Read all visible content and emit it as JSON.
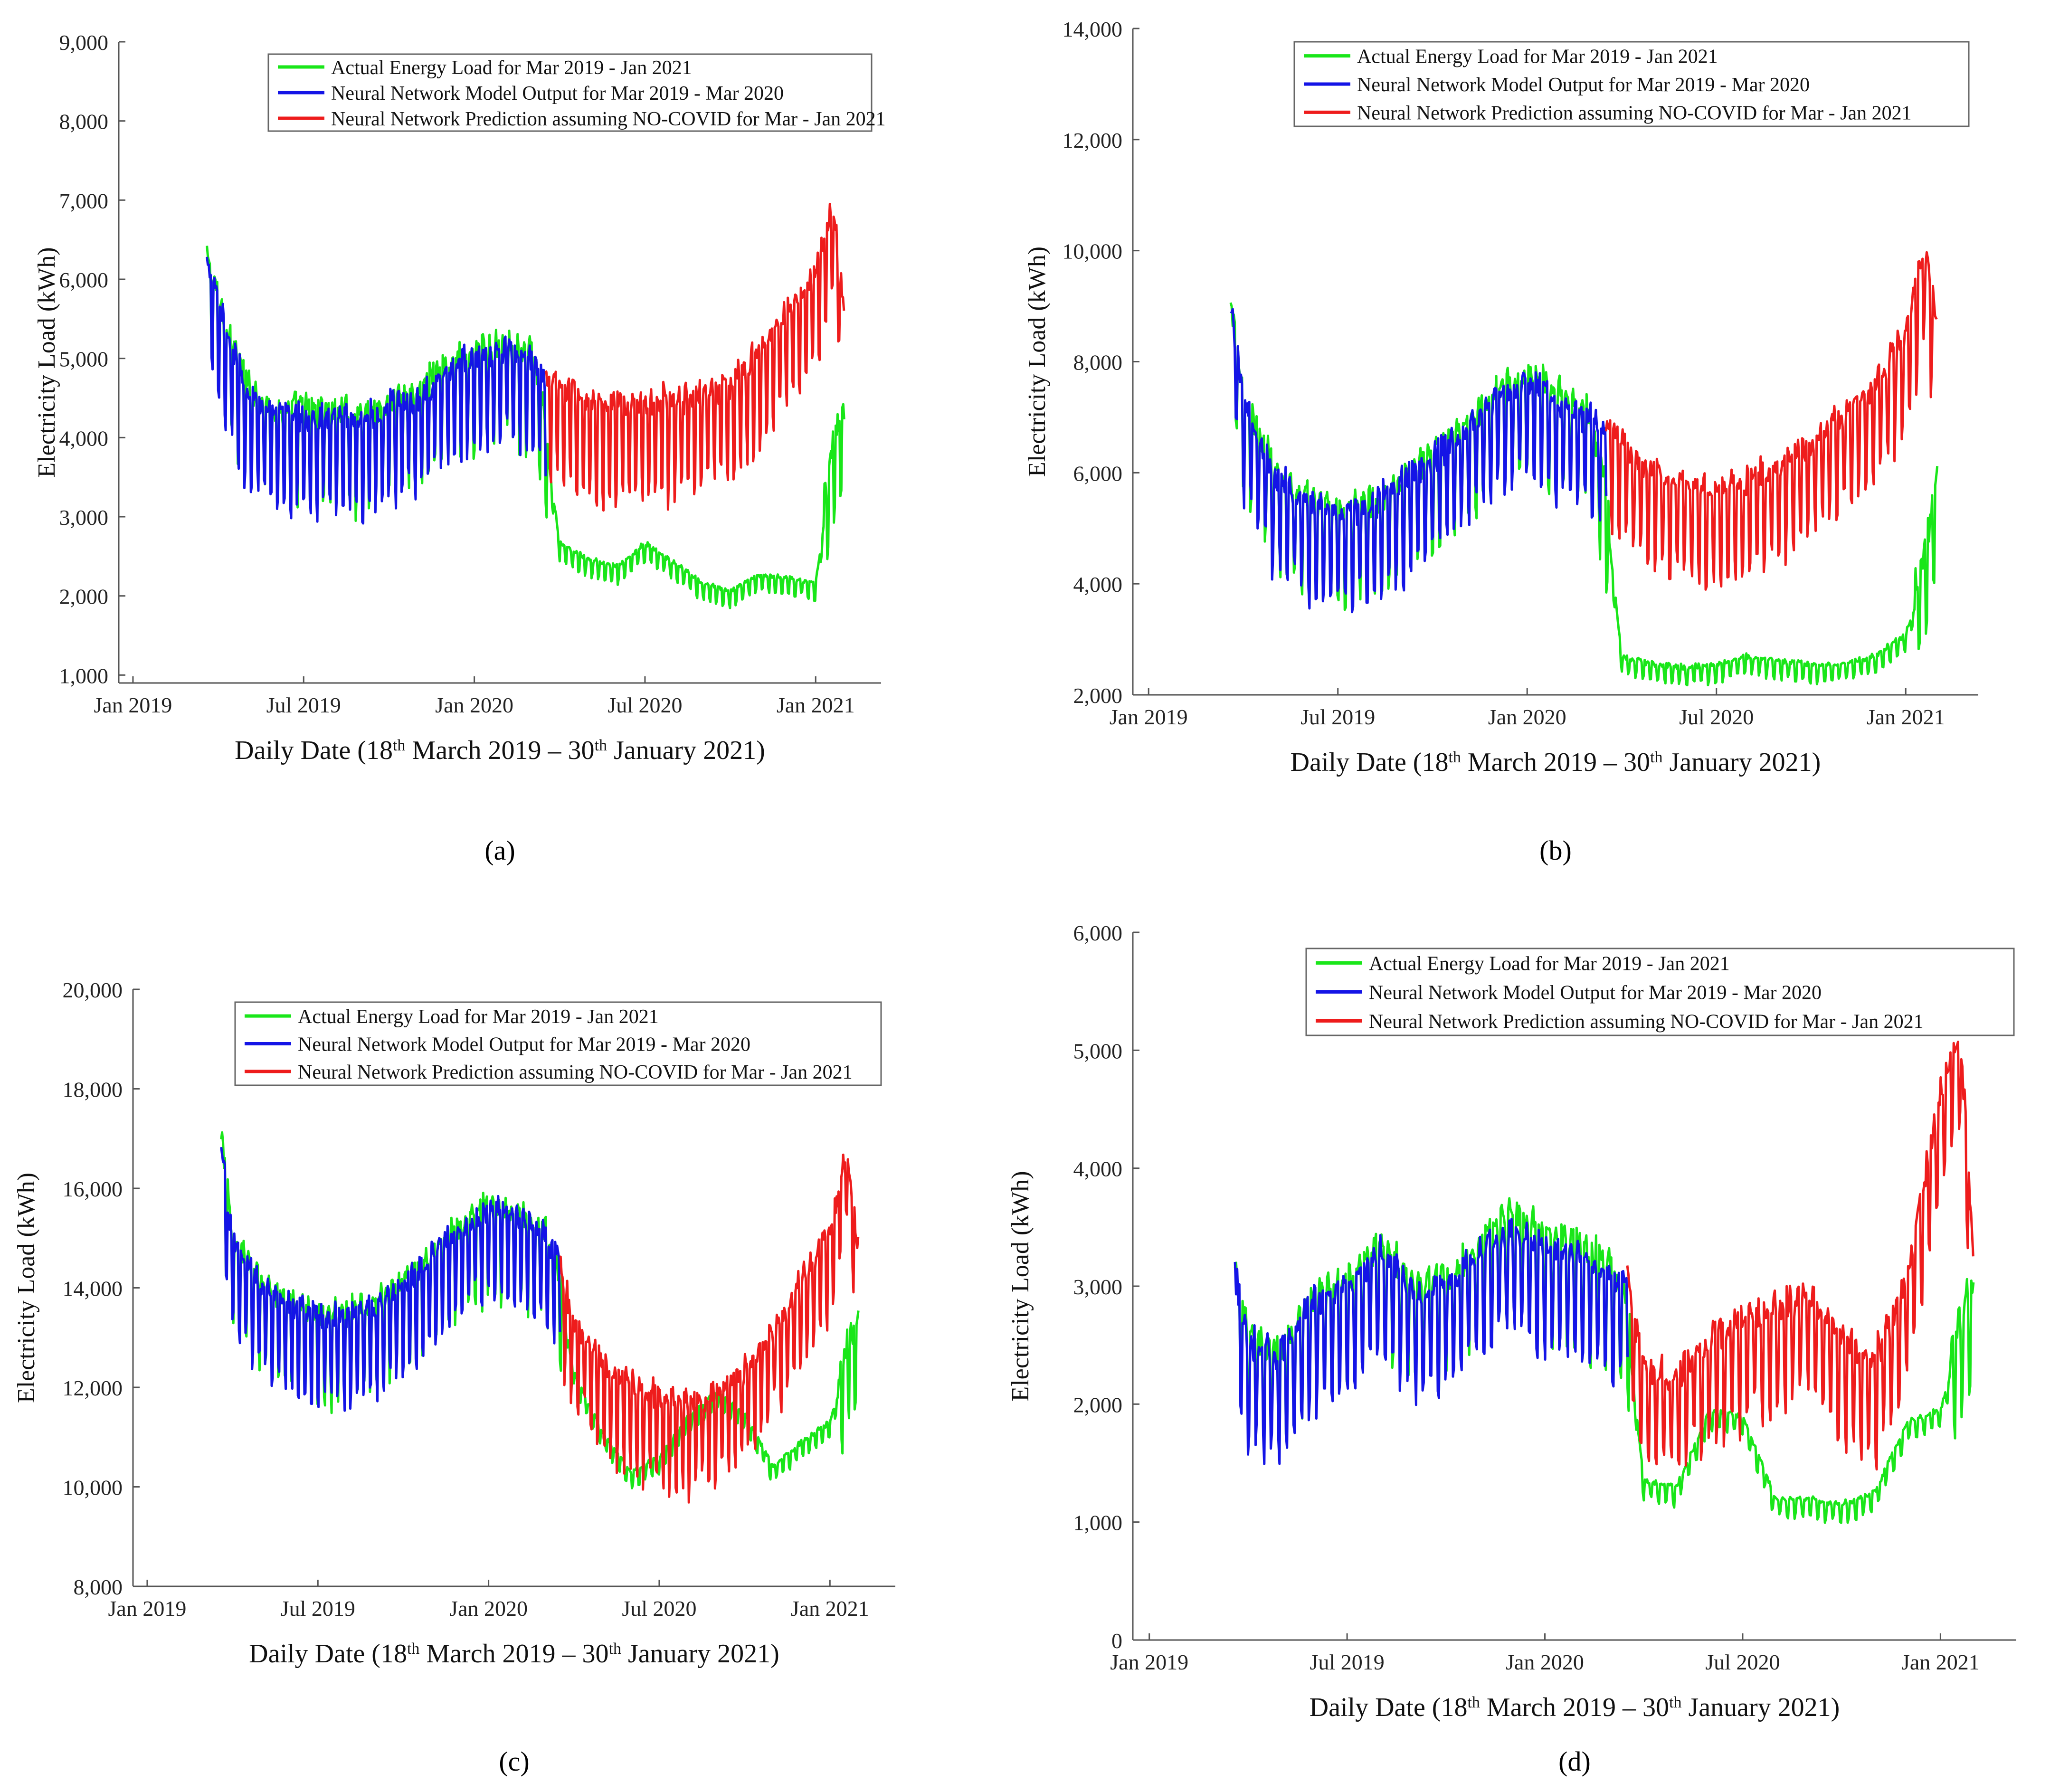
{
  "colors": {
    "actual": "#19e619",
    "model": "#1414e6",
    "prediction": "#ee1c1c",
    "axis": "#555555"
  },
  "chart_data": [
    {
      "panel": "a",
      "caption": "(a)",
      "type": "line",
      "ylabel": "Electricity Load (kWh)",
      "xlabel": "Daily Date (18th March 2019 – 30th January 2021)",
      "xlabel_parts": {
        "pre1": "Daily Date (18",
        "sup1": "th",
        "mid": " March 2019 – 30",
        "sup2": "th",
        "post": " January 2021)"
      },
      "x_ticks": [
        "Jan 2019",
        "Jul 2019",
        "Jan 2020",
        "Jul 2020",
        "Jan 2021"
      ],
      "y_ticks": [
        "1,000",
        "2,000",
        "3,000",
        "4,000",
        "5,000",
        "6,000",
        "7,000",
        "8,000",
        "9,000"
      ],
      "ylim": [
        900,
        9000
      ],
      "legend_position": "top-right",
      "legend": [
        "Actual Energy Load for Mar 2019 - Jan 2021",
        "Neural Network Model Output for Mar 2019 - Mar 2020",
        "Neural Network Prediction assuming NO-COVID for Mar - Jan 2021"
      ],
      "series": [
        {
          "name": "Actual Energy Load for Mar 2019 - Jan 2021",
          "x_months": [
            2.6,
            3.0,
            4.0,
            5.0,
            6.0,
            7.0,
            8.0,
            9.0,
            10.0,
            11.0,
            12.0,
            13.0,
            14.0,
            14.5,
            15.0,
            16.0,
            17.0,
            18.0,
            19.0,
            20.0,
            21.0,
            22.0,
            23.0,
            24.0,
            24.6,
            25.0
          ],
          "y": [
            5900,
            5400,
            4300,
            4000,
            4000,
            4000,
            3900,
            4100,
            4200,
            4600,
            4700,
            4800,
            4700,
            3900,
            2600,
            2400,
            2300,
            2600,
            2350,
            2100,
            2000,
            2200,
            2150,
            2100,
            3600,
            4000
          ]
        },
        {
          "name": "Neural Network Model Output for Mar 2019 - Mar 2020",
          "x_months": [
            2.6,
            3.0,
            4.0,
            5.0,
            6.0,
            7.0,
            8.0,
            9.0,
            10.0,
            11.0,
            12.0,
            13.0,
            14.0,
            14.5
          ],
          "y": [
            5800,
            5300,
            4200,
            3950,
            3900,
            3900,
            3850,
            4000,
            4100,
            4500,
            4650,
            4700,
            4650,
            4400
          ]
        },
        {
          "name": "Neural Network Prediction assuming NO-COVID for Mar - Jan 2021",
          "x_months": [
            14.5,
            15.0,
            16.0,
            17.0,
            18.0,
            19.0,
            20.0,
            21.0,
            22.0,
            23.0,
            24.0,
            24.6,
            25.0
          ],
          "y": [
            4400,
            4300,
            4100,
            4000,
            4100,
            4100,
            4200,
            4300,
            4700,
            5200,
            5700,
            6500,
            5300
          ]
        }
      ]
    },
    {
      "panel": "b",
      "caption": "(b)",
      "type": "line",
      "ylabel": "Electricity Load (kWh)",
      "xlabel": "Daily Date (18th March 2019 – 30th January 2021)",
      "xlabel_parts": {
        "pre1": "Daily Date (18",
        "sup1": "th",
        "mid": " March 2019 – 30",
        "sup2": "th",
        "post": " January 2021)"
      },
      "x_ticks": [
        "Jan 2019",
        "Jul 2019",
        "Jan 2020",
        "Jul 2020",
        "Jan 2021"
      ],
      "y_ticks": [
        "2,000",
        "4,000",
        "6,000",
        "8,000",
        "10,000",
        "12,000",
        "14,000"
      ],
      "ylim": [
        2000,
        14000
      ],
      "legend_position": "top-right",
      "legend": [
        "Actual Energy Load for Mar 2019 - Jan 2021",
        "Neural Network Model Output for Mar 2019 - Mar 2020",
        "Neural Network Prediction assuming NO-COVID for Mar - Jan 2021"
      ],
      "series": [
        {
          "name": "Actual Energy Load for Mar 2019 - Jan 2021",
          "x_months": [
            2.6,
            3.0,
            4.0,
            5.0,
            6.0,
            7.0,
            8.0,
            9.0,
            10.0,
            11.0,
            12.0,
            13.0,
            14.0,
            14.5,
            15.0,
            16.0,
            17.0,
            18.0,
            19.0,
            20.0,
            21.0,
            22.0,
            23.0,
            24.0,
            24.6,
            25.0
          ],
          "y": [
            8600,
            6800,
            5500,
            5000,
            4800,
            4900,
            5300,
            5800,
            6300,
            6900,
            7200,
            6900,
            6500,
            5200,
            2600,
            2450,
            2400,
            2450,
            2600,
            2500,
            2450,
            2450,
            2600,
            3000,
            4000,
            5500
          ]
        },
        {
          "name": "Neural Network Model Output for Mar 2019 - Mar 2020",
          "x_months": [
            2.6,
            3.0,
            4.0,
            5.0,
            6.0,
            7.0,
            8.0,
            9.0,
            10.0,
            11.0,
            12.0,
            13.0,
            14.0,
            14.5
          ],
          "y": [
            8500,
            6700,
            5400,
            4950,
            4750,
            4850,
            5250,
            5700,
            6200,
            6800,
            7100,
            6800,
            6400,
            6200
          ]
        },
        {
          "name": "Neural Network Prediction assuming NO-COVID for Mar - Jan 2021",
          "x_months": [
            14.5,
            15.0,
            16.0,
            17.0,
            18.0,
            19.0,
            20.0,
            21.0,
            22.0,
            23.0,
            24.0,
            24.6,
            25.0
          ],
          "y": [
            6400,
            6000,
            5400,
            5300,
            5200,
            5300,
            5600,
            6000,
            6500,
            7000,
            8000,
            9500,
            8000
          ]
        }
      ]
    },
    {
      "panel": "c",
      "caption": "(c)",
      "type": "line",
      "ylabel": "Electricity Load (kWh)",
      "xlabel": "Daily Date (18th March 2019 – 30th January 2021)",
      "xlabel_parts": {
        "pre1": "Daily Date (18",
        "sup1": "th",
        "mid": " March 2019 – 30",
        "sup2": "th",
        "post": " January 2021)"
      },
      "x_ticks": [
        "Jan 2019",
        "Jul 2019",
        "Jan 2020",
        "Jul 2020",
        "Jan 2021"
      ],
      "y_ticks": [
        "8,000",
        "10,000",
        "12,000",
        "14,000",
        "16,000",
        "18,000",
        "20,000"
      ],
      "ylim": [
        8000,
        20000
      ],
      "legend_position": "top-right",
      "legend": [
        "Actual Energy Load for Mar 2019 - Jan 2021",
        "Neural Network Model Output for Mar 2019 - Mar 2020",
        "Neural Network Prediction assuming NO-COVID for Mar - Jan 2021"
      ],
      "series": [
        {
          "name": "Actual Energy Load for Mar 2019 - Jan 2021",
          "x_months": [
            2.6,
            3.0,
            4.0,
            5.0,
            6.0,
            7.0,
            8.0,
            9.0,
            10.0,
            11.0,
            12.0,
            13.0,
            14.0,
            14.5,
            15.0,
            16.0,
            17.0,
            18.0,
            19.0,
            20.0,
            21.0,
            22.0,
            23.0,
            24.0,
            24.6,
            25.0
          ],
          "y": [
            16500,
            14500,
            13600,
            13200,
            12900,
            13000,
            13200,
            13600,
            14200,
            14700,
            15100,
            15000,
            14600,
            13800,
            12200,
            11000,
            10200,
            10500,
            11300,
            11800,
            11400,
            10300,
            10800,
            11200,
            12300,
            13000
          ]
        },
        {
          "name": "Neural Network Model Output for Mar 2019 - Mar 2020",
          "x_months": [
            2.6,
            3.0,
            4.0,
            5.0,
            6.0,
            7.0,
            8.0,
            9.0,
            10.0,
            11.0,
            12.0,
            13.0,
            14.0,
            14.5
          ],
          "y": [
            16400,
            14400,
            13500,
            13100,
            12900,
            12900,
            13100,
            13500,
            14100,
            14600,
            15000,
            14900,
            14500,
            14000
          ]
        },
        {
          "name": "Neural Network Prediction assuming NO-COVID for Mar - Jan 2021",
          "x_months": [
            14.5,
            15.0,
            16.0,
            17.0,
            18.0,
            19.0,
            20.0,
            21.0,
            22.0,
            23.0,
            24.0,
            24.6,
            25.0
          ],
          "y": [
            13900,
            12800,
            11900,
            11500,
            11300,
            11100,
            11300,
            11800,
            12600,
            13600,
            14600,
            16200,
            14200
          ]
        }
      ]
    },
    {
      "panel": "d",
      "caption": "(d)",
      "type": "line",
      "ylabel": "Electricity Load (kWh)",
      "xlabel": "Daily Date (18th March 2019 – 30th January 2021)",
      "xlabel_parts": {
        "pre1": "Daily Date (18",
        "sup1": "th",
        "mid": " March 2019 – 30",
        "sup2": "th",
        "post": " January 2021)"
      },
      "x_ticks": [
        "Jan 2019",
        "Jul 2019",
        "Jan 2020",
        "Jul 2020",
        "Jan 2021"
      ],
      "y_ticks": [
        "0",
        "1,000",
        "2,000",
        "3,000",
        "4,000",
        "5,000",
        "6,000"
      ],
      "ylim": [
        0,
        6000
      ],
      "legend_position": "top-right",
      "legend": [
        "Actual Energy Load for Mar 2019 - Jan 2021",
        "Neural Network Model Output for Mar 2019 - Mar 2020",
        "Neural Network Prediction assuming NO-COVID for Mar - Jan 2021"
      ],
      "series": [
        {
          "name": "Actual Energy Load for Mar 2019 - Jan 2021",
          "x_months": [
            2.6,
            3.0,
            4.0,
            5.0,
            6.0,
            7.0,
            8.0,
            9.0,
            10.0,
            11.0,
            12.0,
            13.0,
            14.0,
            14.5,
            15.0,
            16.0,
            17.0,
            18.0,
            19.0,
            20.0,
            21.0,
            22.0,
            23.0,
            24.0,
            24.6,
            25.0
          ],
          "y": [
            2900,
            2300,
            2200,
            2650,
            2750,
            3100,
            2750,
            2800,
            3100,
            3400,
            3200,
            3100,
            2900,
            2600,
            1300,
            1250,
            1900,
            1850,
            1150,
            1150,
            1100,
            1200,
            1800,
            1900,
            2500,
            2800
          ]
        },
        {
          "name": "Neural Network Model Output for Mar 2019 - Mar 2020",
          "x_months": [
            2.6,
            3.0,
            4.0,
            5.0,
            6.0,
            7.0,
            8.0,
            9.0,
            10.0,
            11.0,
            12.0,
            13.0,
            14.0,
            14.5
          ],
          "y": [
            2800,
            2250,
            2150,
            2600,
            2700,
            3000,
            2700,
            2750,
            3000,
            3200,
            3050,
            3000,
            2800,
            2800
          ]
        },
        {
          "name": "Neural Network Prediction assuming NO-COVID for Mar - Jan 2021",
          "x_months": [
            14.5,
            15.0,
            16.0,
            17.0,
            18.0,
            19.0,
            20.0,
            21.0,
            22.0,
            23.0,
            24.0,
            24.6,
            25.0
          ],
          "y": [
            2800,
            2050,
            1950,
            2300,
            2450,
            2550,
            2650,
            2300,
            2100,
            2800,
            4400,
            4900,
            3000
          ]
        }
      ]
    }
  ]
}
